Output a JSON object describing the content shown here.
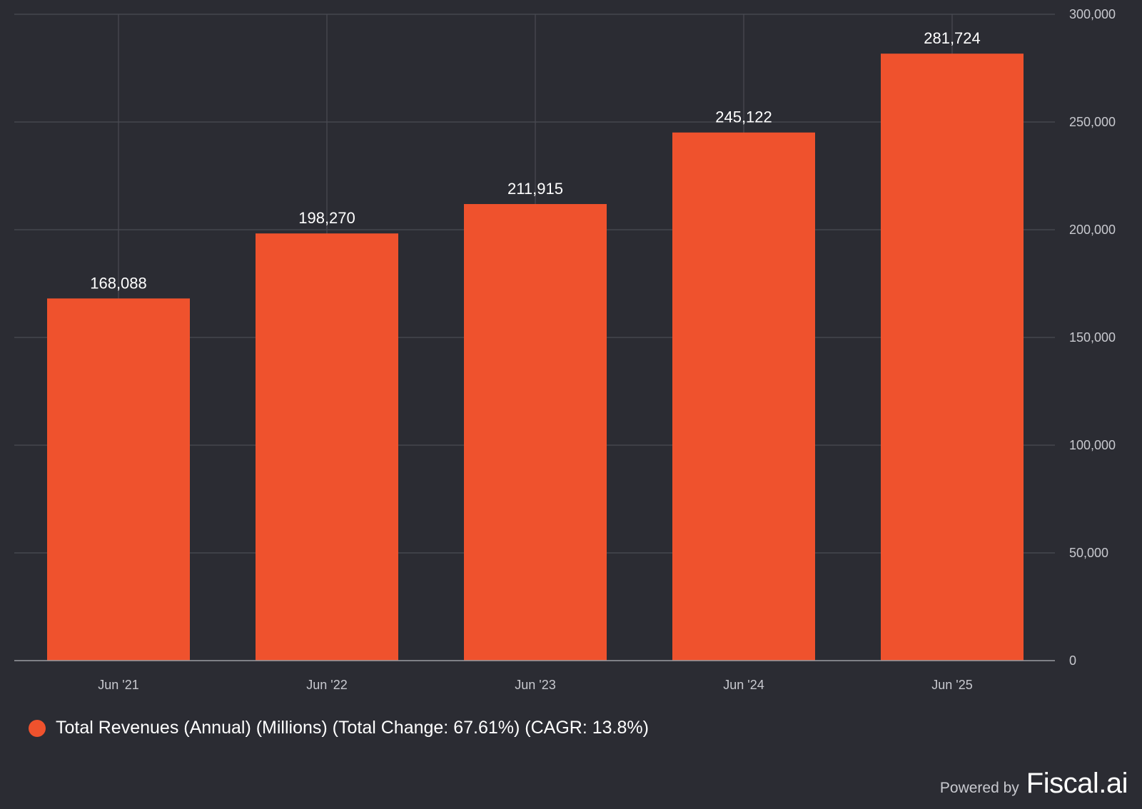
{
  "colors": {
    "background": "#2b2c33",
    "bar": "#ef522d",
    "grid": "#4a4b53",
    "axis_line": "#9a9ba2",
    "tick_label": "#c8c9cf",
    "data_label": "#ffffff"
  },
  "chart_data": {
    "type": "bar",
    "title": "",
    "xlabel": "",
    "ylabel": "",
    "categories": [
      "Jun '21",
      "Jun '22",
      "Jun '23",
      "Jun '24",
      "Jun '25"
    ],
    "values": [
      168088,
      198270,
      211915,
      245122,
      281724
    ],
    "value_labels": [
      "168,088",
      "198,270",
      "211,915",
      "245,122",
      "281,724"
    ],
    "ylim": [
      0,
      300000
    ],
    "yticks": [
      0,
      50000,
      100000,
      150000,
      200000,
      250000,
      300000
    ],
    "ytick_labels": [
      "0",
      "50,000",
      "100,000",
      "150,000",
      "200,000",
      "250,000",
      "300,000"
    ],
    "y_axis_side": "right",
    "grid": true,
    "legend_position": "bottom-left"
  },
  "legend": {
    "label": "Total Revenues (Annual) (Millions) (Total Change: 67.61%) (CAGR: 13.8%)"
  },
  "branding": {
    "powered_by": "Powered by",
    "name": "Fiscal.ai"
  }
}
